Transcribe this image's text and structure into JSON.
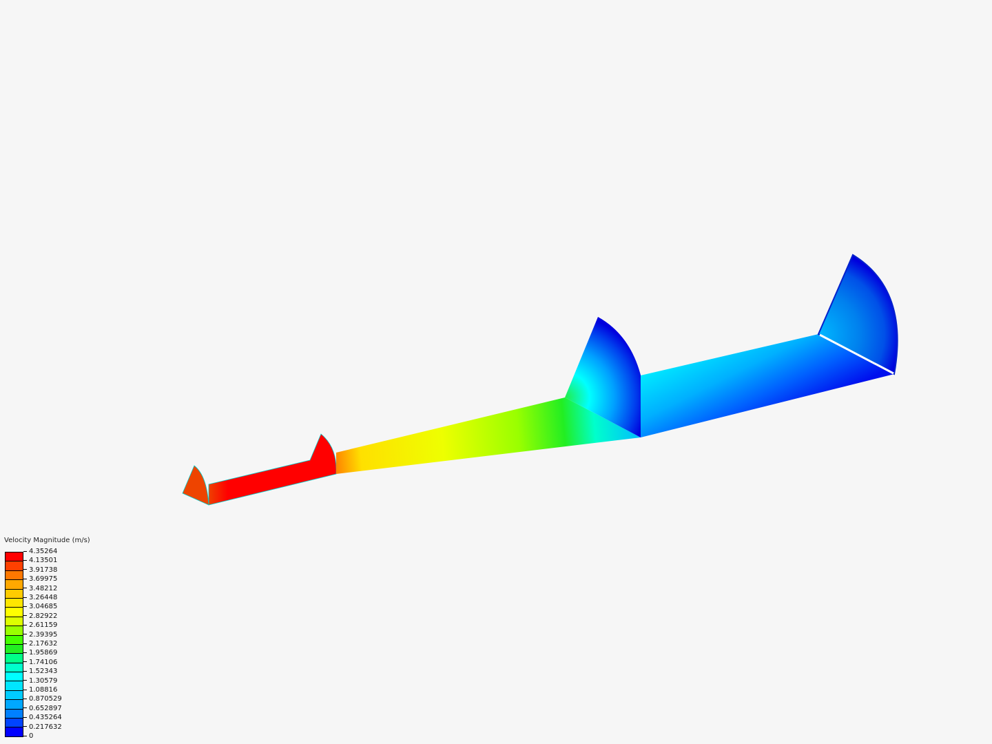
{
  "legend": {
    "title": "Velocity Magnitude (m/s)",
    "labels": [
      "4.35264",
      "4.13501",
      "3.91738",
      "3.69975",
      "3.48212",
      "3.26448",
      "3.04685",
      "2.82922",
      "2.61159",
      "2.39395",
      "2.17632",
      "1.95869",
      "1.74106",
      "1.52343",
      "1.30579",
      "1.08816",
      "0.870529",
      "0.652897",
      "0.435264",
      "0.217632",
      "0"
    ],
    "colors": [
      "#ff0000",
      "#ff4000",
      "#ff7800",
      "#ffa800",
      "#ffcc00",
      "#ffe600",
      "#ffff00",
      "#ddff00",
      "#99ff00",
      "#44ff00",
      "#22ee22",
      "#00ff88",
      "#00ffcc",
      "#00ffff",
      "#00e6ff",
      "#00ccff",
      "#00a8ff",
      "#0080ff",
      "#0044ff",
      "#0000ff"
    ]
  }
}
